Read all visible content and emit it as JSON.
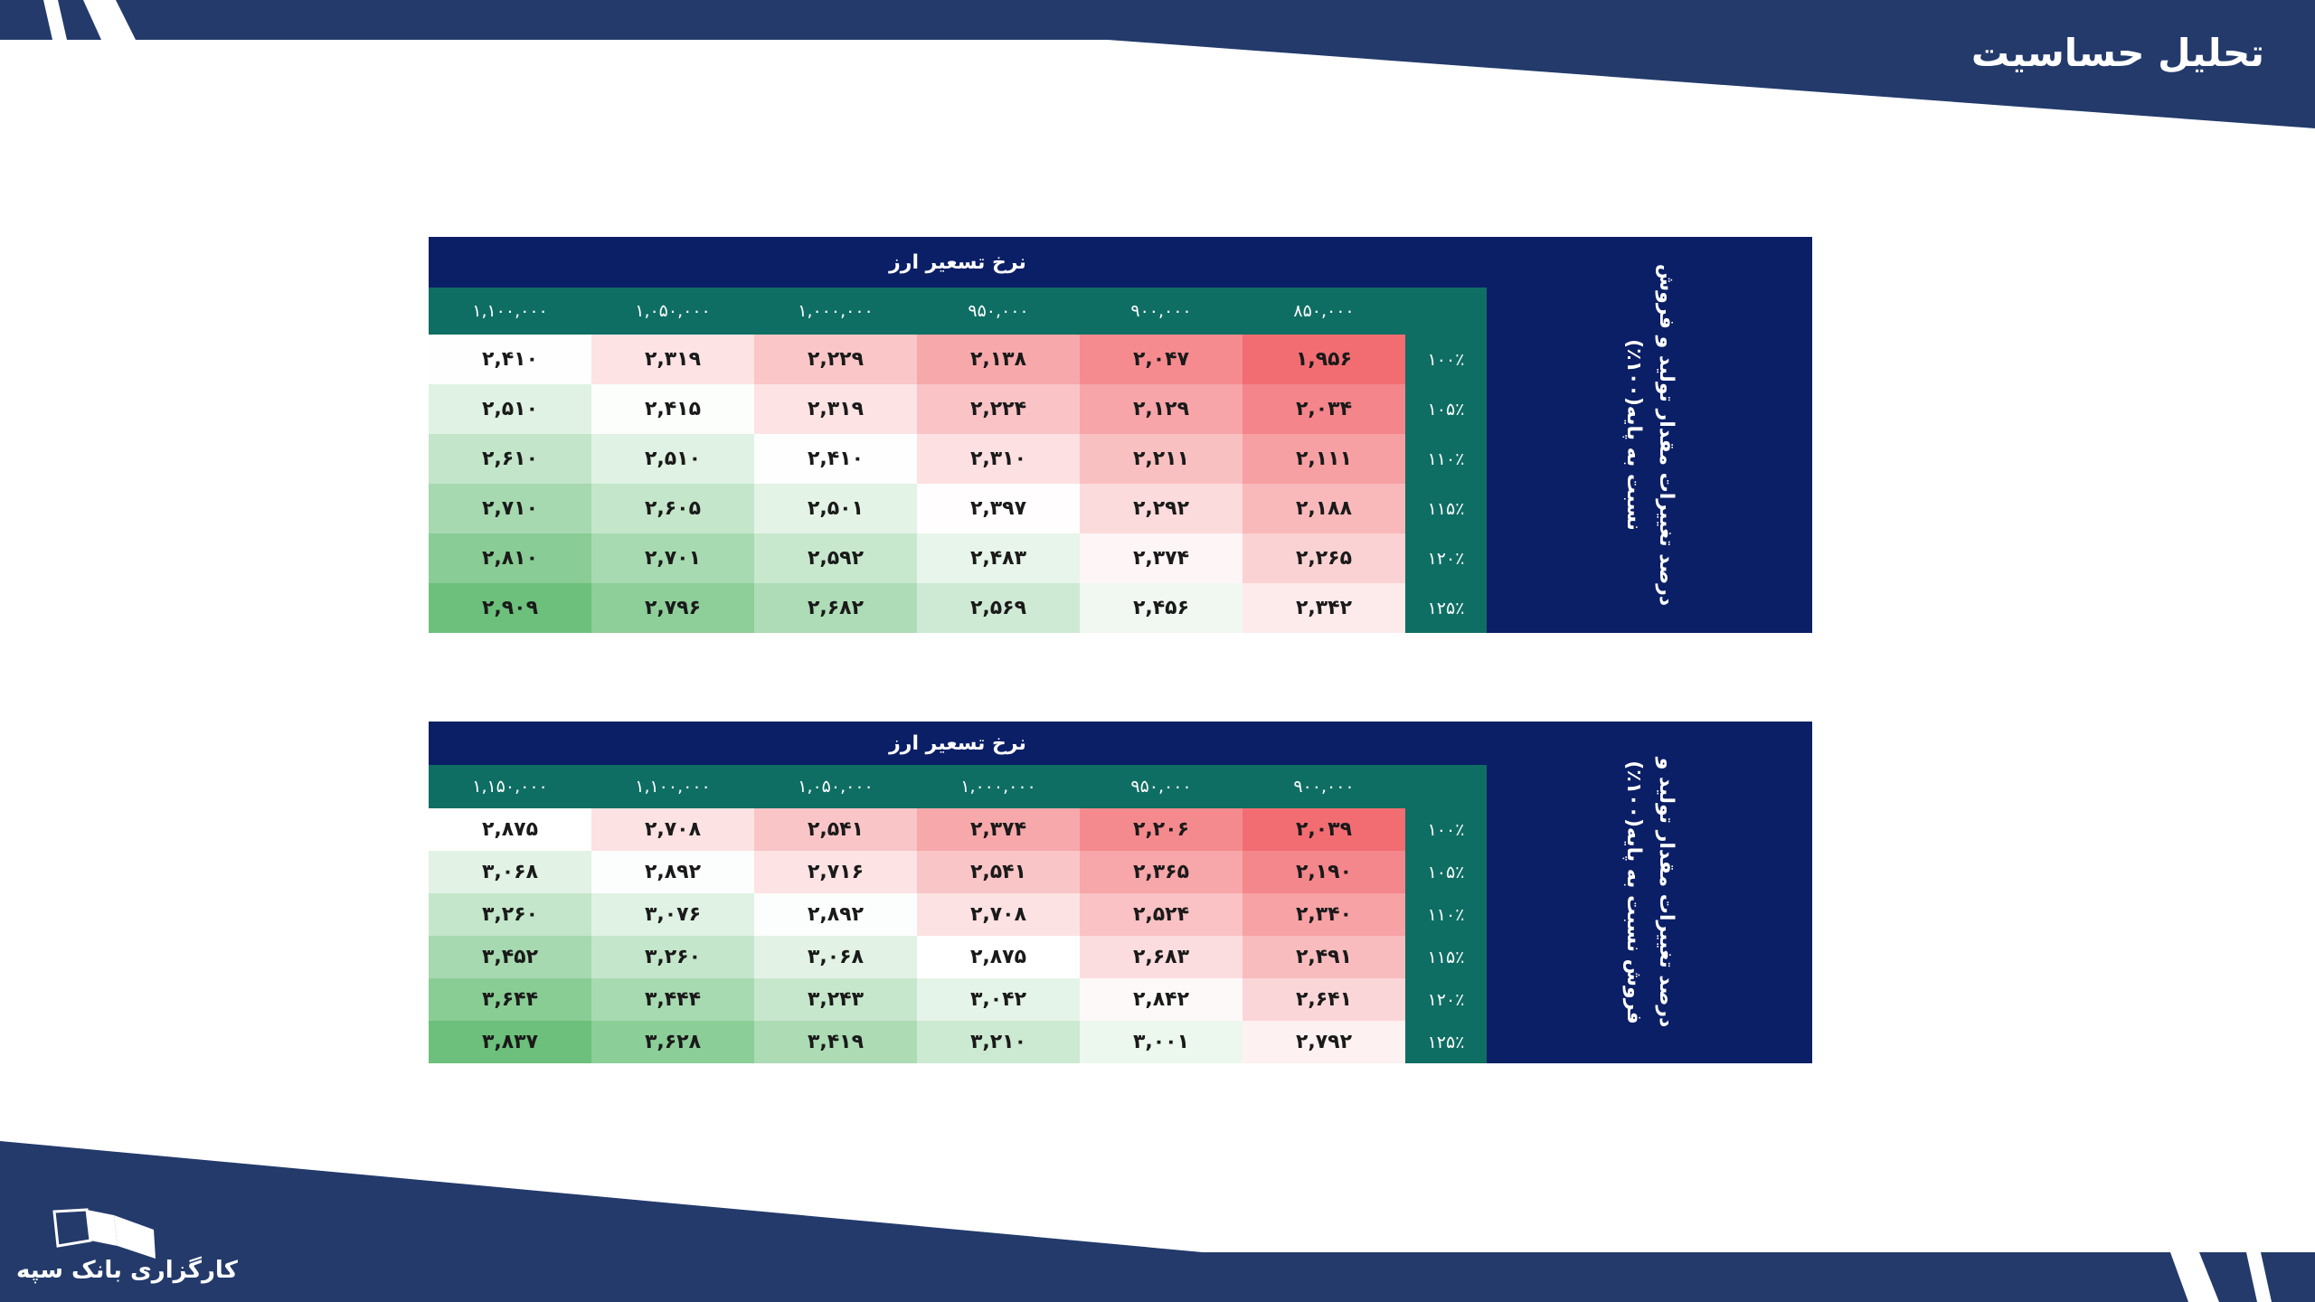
{
  "page": {
    "title": "تحلیل حساسیت",
    "logo_text": "کارگزاری بانک سپه"
  },
  "colors": {
    "navy": "#233a6b",
    "table_header_navy": "#0b1f66",
    "teal": "#0f6e63",
    "heat_low": "#f26d72",
    "heat_mid": "#ffffff",
    "heat_high": "#6cc07b"
  },
  "tables": [
    {
      "super_header": "نرخ تسعیر ارز",
      "side_label": "درصد تغییرات مقدار تولید و فروش نسبت به پایه(۱۰۰٪)",
      "col_headers": [
        "۸۵۰,۰۰۰",
        "۹۰۰,۰۰۰",
        "۹۵۰,۰۰۰",
        "۱,۰۰۰,۰۰۰",
        "۱,۰۵۰,۰۰۰",
        "۱,۱۰۰,۰۰۰"
      ],
      "row_headers": [
        "۱۰۰٪",
        "۱۰۵٪",
        "۱۱۰٪",
        "۱۱۵٪",
        "۱۲۰٪",
        "۱۲۵٪"
      ],
      "cells": [
        [
          "۱,۹۵۶",
          "۲,۰۴۷",
          "۲,۱۳۸",
          "۲,۲۲۹",
          "۲,۳۱۹",
          "۲,۴۱۰"
        ],
        [
          "۲,۰۳۴",
          "۲,۱۲۹",
          "۲,۲۲۴",
          "۲,۳۱۹",
          "۲,۴۱۵",
          "۲,۵۱۰"
        ],
        [
          "۲,۱۱۱",
          "۲,۲۱۱",
          "۲,۳۱۰",
          "۲,۴۱۰",
          "۲,۵۱۰",
          "۲,۶۱۰"
        ],
        [
          "۲,۱۸۸",
          "۲,۲۹۲",
          "۲,۳۹۷",
          "۲,۵۰۱",
          "۲,۶۰۵",
          "۲,۷۱۰"
        ],
        [
          "۲,۲۶۵",
          "۲,۳۷۴",
          "۲,۴۸۳",
          "۲,۵۹۲",
          "۲,۷۰۱",
          "۲,۸۱۰"
        ],
        [
          "۲,۳۴۲",
          "۲,۴۵۶",
          "۲,۵۶۹",
          "۲,۶۸۲",
          "۲,۷۹۶",
          "۲,۹۰۹"
        ]
      ],
      "values": [
        [
          1956,
          2047,
          2138,
          2229,
          2319,
          2410
        ],
        [
          2034,
          2129,
          2224,
          2319,
          2415,
          2510
        ],
        [
          2111,
          2211,
          2310,
          2410,
          2510,
          2610
        ],
        [
          2188,
          2292,
          2397,
          2501,
          2605,
          2710
        ],
        [
          2265,
          2374,
          2483,
          2592,
          2701,
          2810
        ],
        [
          2342,
          2456,
          2569,
          2682,
          2796,
          2909
        ]
      ]
    },
    {
      "super_header": "نرخ تسعیر ارز",
      "side_label": "درصد تغییرات مقدار تولید و فروش نسبت به پایه(۱۰۰٪)",
      "col_headers": [
        "۹۰۰,۰۰۰",
        "۹۵۰,۰۰۰",
        "۱,۰۰۰,۰۰۰",
        "۱,۰۵۰,۰۰۰",
        "۱,۱۰۰,۰۰۰",
        "۱,۱۵۰,۰۰۰"
      ],
      "row_headers": [
        "۱۰۰٪",
        "۱۰۵٪",
        "۱۱۰٪",
        "۱۱۵٪",
        "۱۲۰٪",
        "۱۲۵٪"
      ],
      "cells": [
        [
          "۲,۰۳۹",
          "۲,۲۰۶",
          "۲,۳۷۴",
          "۲,۵۴۱",
          "۲,۷۰۸",
          "۲,۸۷۵"
        ],
        [
          "۲,۱۹۰",
          "۲,۳۶۵",
          "۲,۵۴۱",
          "۲,۷۱۶",
          "۲,۸۹۲",
          "۳,۰۶۸"
        ],
        [
          "۲,۳۴۰",
          "۲,۵۲۴",
          "۲,۷۰۸",
          "۲,۸۹۲",
          "۳,۰۷۶",
          "۳,۲۶۰"
        ],
        [
          "۲,۴۹۱",
          "۲,۶۸۳",
          "۲,۸۷۵",
          "۳,۰۶۸",
          "۳,۲۶۰",
          "۳,۴۵۲"
        ],
        [
          "۲,۶۴۱",
          "۲,۸۴۲",
          "۳,۰۴۲",
          "۳,۲۴۳",
          "۳,۴۴۴",
          "۳,۶۴۴"
        ],
        [
          "۲,۷۹۲",
          "۳,۰۰۱",
          "۳,۲۱۰",
          "۳,۴۱۹",
          "۳,۶۲۸",
          "۳,۸۳۷"
        ]
      ],
      "values": [
        [
          2039,
          2206,
          2374,
          2541,
          2708,
          2875
        ],
        [
          2190,
          2365,
          2541,
          2716,
          2892,
          3068
        ],
        [
          2340,
          2524,
          2708,
          2892,
          3076,
          3260
        ],
        [
          2491,
          2683,
          2875,
          3068,
          3260,
          3452
        ],
        [
          2641,
          2842,
          3042,
          3243,
          3444,
          3644
        ],
        [
          2792,
          3001,
          3210,
          3419,
          3628,
          3837
        ]
      ]
    }
  ]
}
